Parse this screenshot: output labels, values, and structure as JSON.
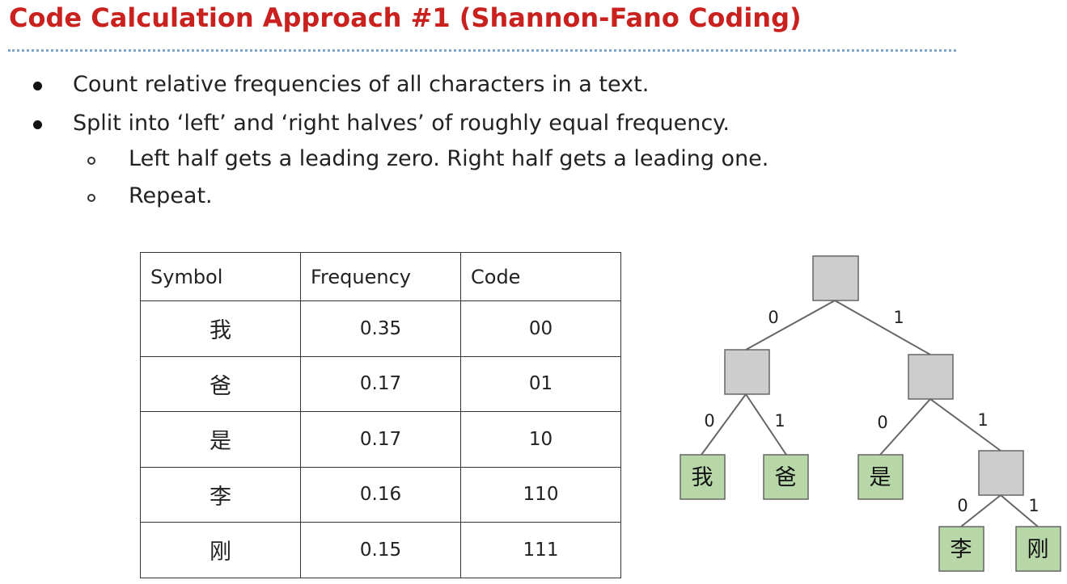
{
  "slide": {
    "title": "Code Calculation Approach #1 (Shannon-Fano Coding)",
    "bullets": [
      {
        "text": "Count relative frequencies of all characters in a text.",
        "level": 1
      },
      {
        "text": "Split into ‘left’ and ‘right halves’ of roughly equal frequency.",
        "level": 1
      },
      {
        "text": "Left half gets a leading zero. Right half gets a leading one.",
        "level": 2
      },
      {
        "text": "Repeat.",
        "level": 2
      }
    ]
  },
  "table": {
    "headers": [
      "Symbol",
      "Frequency",
      "Code"
    ],
    "rows": [
      {
        "symbol": "我",
        "frequency": "0.35",
        "code": "00"
      },
      {
        "symbol": "爸",
        "frequency": "0.17",
        "code": "01"
      },
      {
        "symbol": "是",
        "frequency": "0.17",
        "code": "10"
      },
      {
        "symbol": "李",
        "frequency": "0.16",
        "code": "110"
      },
      {
        "symbol": "刚",
        "frequency": "0.15",
        "code": "111"
      }
    ]
  },
  "tree": {
    "edge_labels": {
      "zero": "0",
      "one": "1"
    },
    "leaves": [
      "我",
      "爸",
      "是",
      "李",
      "刚"
    ],
    "colors": {
      "internal_fill": "#cdcdcd",
      "leaf_fill": "#b7d7a8",
      "border": "#666666",
      "edge": "#666666"
    }
  }
}
